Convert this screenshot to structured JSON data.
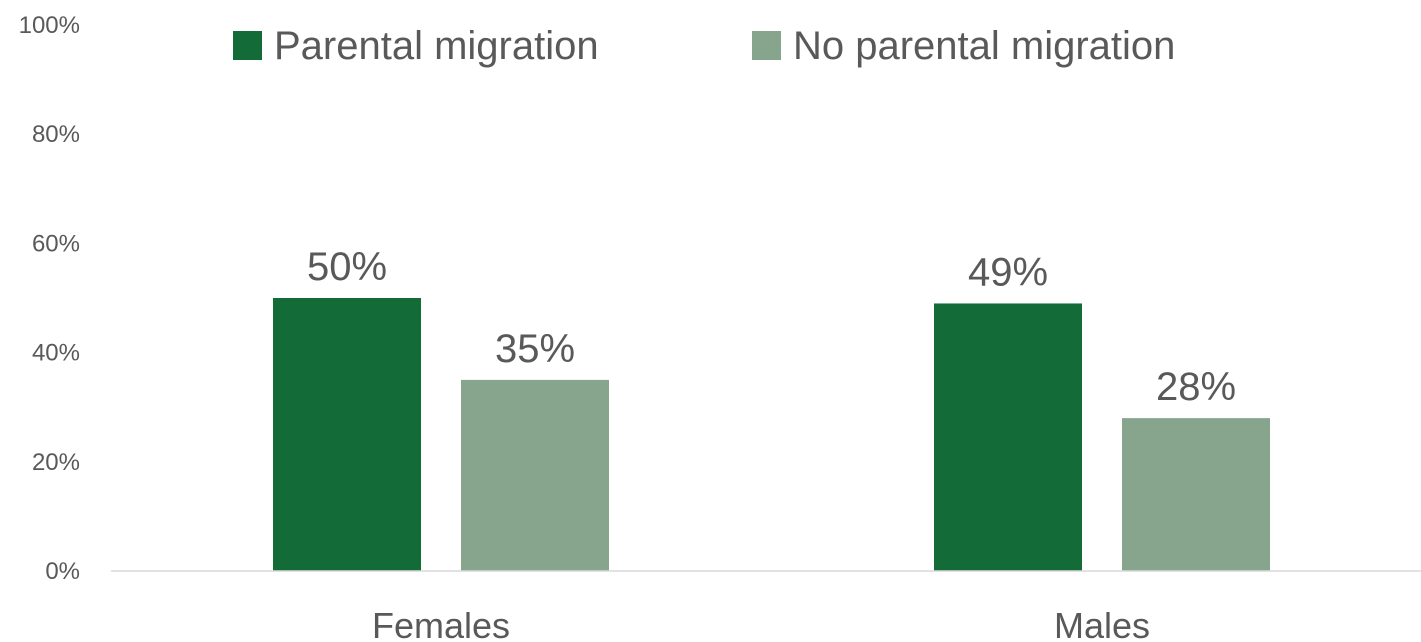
{
  "chart_data": {
    "type": "bar",
    "title": "",
    "xlabel": "",
    "ylabel": "",
    "categories": [
      "Females",
      "Males"
    ],
    "series": [
      {
        "name": "Parental migration",
        "color": "#136B38",
        "values": [
          50,
          49
        ],
        "labels": [
          "50%",
          "49%"
        ]
      },
      {
        "name": "No parental migration",
        "color": "#87A58C",
        "values": [
          35,
          28
        ],
        "labels": [
          "35%",
          "28%"
        ]
      }
    ],
    "ylim": [
      0,
      100
    ],
    "yticks": [
      0,
      20,
      40,
      60,
      80,
      100
    ],
    "ytick_labels": [
      "0%",
      "20%",
      "40%",
      "60%",
      "80%",
      "100%"
    ],
    "grid": false,
    "legend_position": "top",
    "axis_color": "#D9D9D9"
  }
}
